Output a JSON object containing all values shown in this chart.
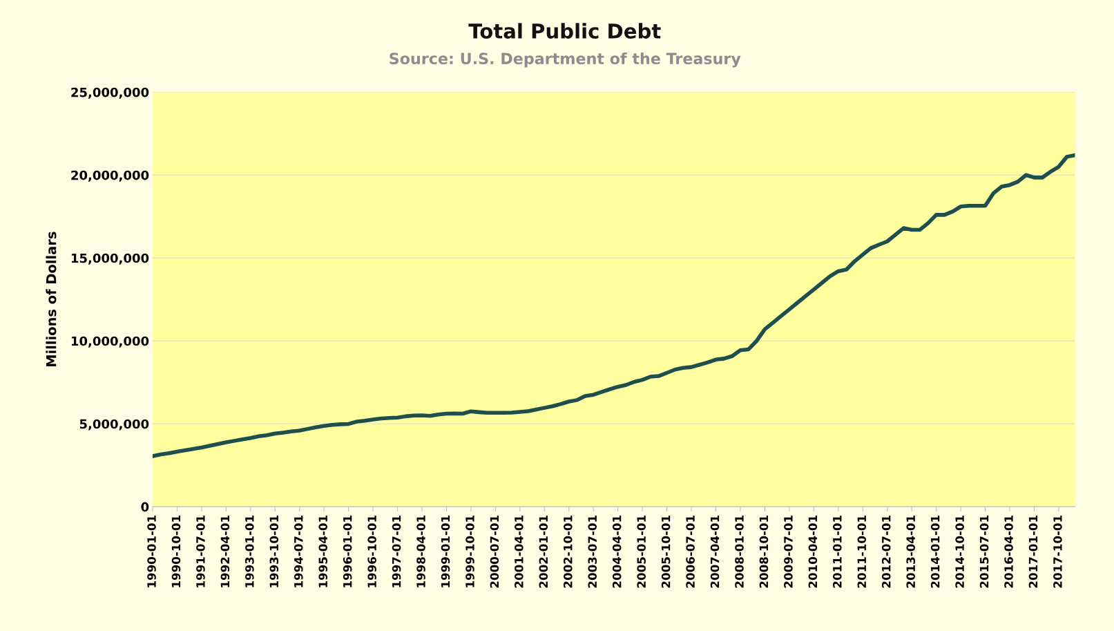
{
  "chart_data": {
    "type": "line",
    "title": "Total Public Debt",
    "subtitle": "Source: U.S. Department of the Treasury",
    "ylabel": "Millions of Dollars",
    "categories": [
      "1990-01-01",
      null,
      null,
      "1990-10-01",
      null,
      null,
      "1991-07-01",
      null,
      null,
      "1992-04-01",
      null,
      null,
      "1993-01-01",
      null,
      null,
      "1993-10-01",
      null,
      null,
      "1994-07-01",
      null,
      null,
      "1995-04-01",
      null,
      null,
      "1996-01-01",
      null,
      null,
      "1996-10-01",
      null,
      null,
      "1997-07-01",
      null,
      null,
      "1998-04-01",
      null,
      null,
      "1999-01-01",
      null,
      null,
      "1999-10-01",
      null,
      null,
      "2000-07-01",
      null,
      null,
      "2001-04-01",
      null,
      null,
      "2002-01-01",
      null,
      null,
      "2002-10-01",
      null,
      null,
      "2003-07-01",
      null,
      null,
      "2004-04-01",
      null,
      null,
      "2005-01-01",
      null,
      null,
      "2005-10-01",
      null,
      null,
      "2006-07-01",
      null,
      null,
      "2007-04-01",
      null,
      null,
      "2008-01-01",
      null,
      null,
      "2008-10-01",
      null,
      null,
      "2009-07-01",
      null,
      null,
      "2010-04-01",
      null,
      null,
      "2011-01-01",
      null,
      null,
      "2011-10-01",
      null,
      null,
      "2012-07-01",
      null,
      null,
      "2013-04-01",
      null,
      null,
      "2014-01-01",
      null,
      null,
      "2014-10-01",
      null,
      null,
      "2015-07-01",
      null,
      null,
      "2016-04-01",
      null,
      null,
      "2017-01-01",
      null,
      null,
      "2017-10-01",
      null,
      null
    ],
    "series": [
      {
        "color": "#1f4e4f",
        "values": [
          3050000,
          3150000,
          3230000,
          3320000,
          3400000,
          3490000,
          3570000,
          3670000,
          3780000,
          3880000,
          3970000,
          4060000,
          4140000,
          4250000,
          4310000,
          4410000,
          4470000,
          4540000,
          4590000,
          4690000,
          4790000,
          4870000,
          4930000,
          4970000,
          4990000,
          5130000,
          5180000,
          5260000,
          5320000,
          5350000,
          5370000,
          5450000,
          5500000,
          5510000,
          5480000,
          5560000,
          5610000,
          5620000,
          5610000,
          5750000,
          5700000,
          5660000,
          5660000,
          5660000,
          5670000,
          5720000,
          5760000,
          5860000,
          5960000,
          6060000,
          6190000,
          6340000,
          6430000,
          6670000,
          6750000,
          6920000,
          7080000,
          7230000,
          7340000,
          7530000,
          7650000,
          7840000,
          7880000,
          8070000,
          8270000,
          8370000,
          8420000,
          8560000,
          8700000,
          8870000,
          8930000,
          9080000,
          9440000,
          9490000,
          10000000,
          10700000,
          11100000,
          11500000,
          11900000,
          12300000,
          12700000,
          13100000,
          13500000,
          13900000,
          14200000,
          14300000,
          14800000,
          15200000,
          15600000,
          15800000,
          16000000,
          16400000,
          16800000,
          16700000,
          16700000,
          17100000,
          17600000,
          17600000,
          17800000,
          18100000,
          18150000,
          18150000,
          18150000,
          18900000,
          19300000,
          19400000,
          19600000,
          20000000,
          19850000,
          19850000,
          20200000,
          20500000,
          21100000,
          21200000
        ]
      }
    ],
    "ylim": [
      0,
      25000000
    ],
    "yticks": [
      {
        "value": 0,
        "label": "0"
      },
      {
        "value": 5000000,
        "label": "5,000,000"
      },
      {
        "value": 10000000,
        "label": "10,000,000"
      },
      {
        "value": 15000000,
        "label": "15,000,000"
      },
      {
        "value": 20000000,
        "label": "20,000,000"
      },
      {
        "value": 25000000,
        "label": "25,000,000"
      }
    ],
    "grid": "y",
    "legend": false,
    "marker": "none",
    "line_style": "solid"
  }
}
